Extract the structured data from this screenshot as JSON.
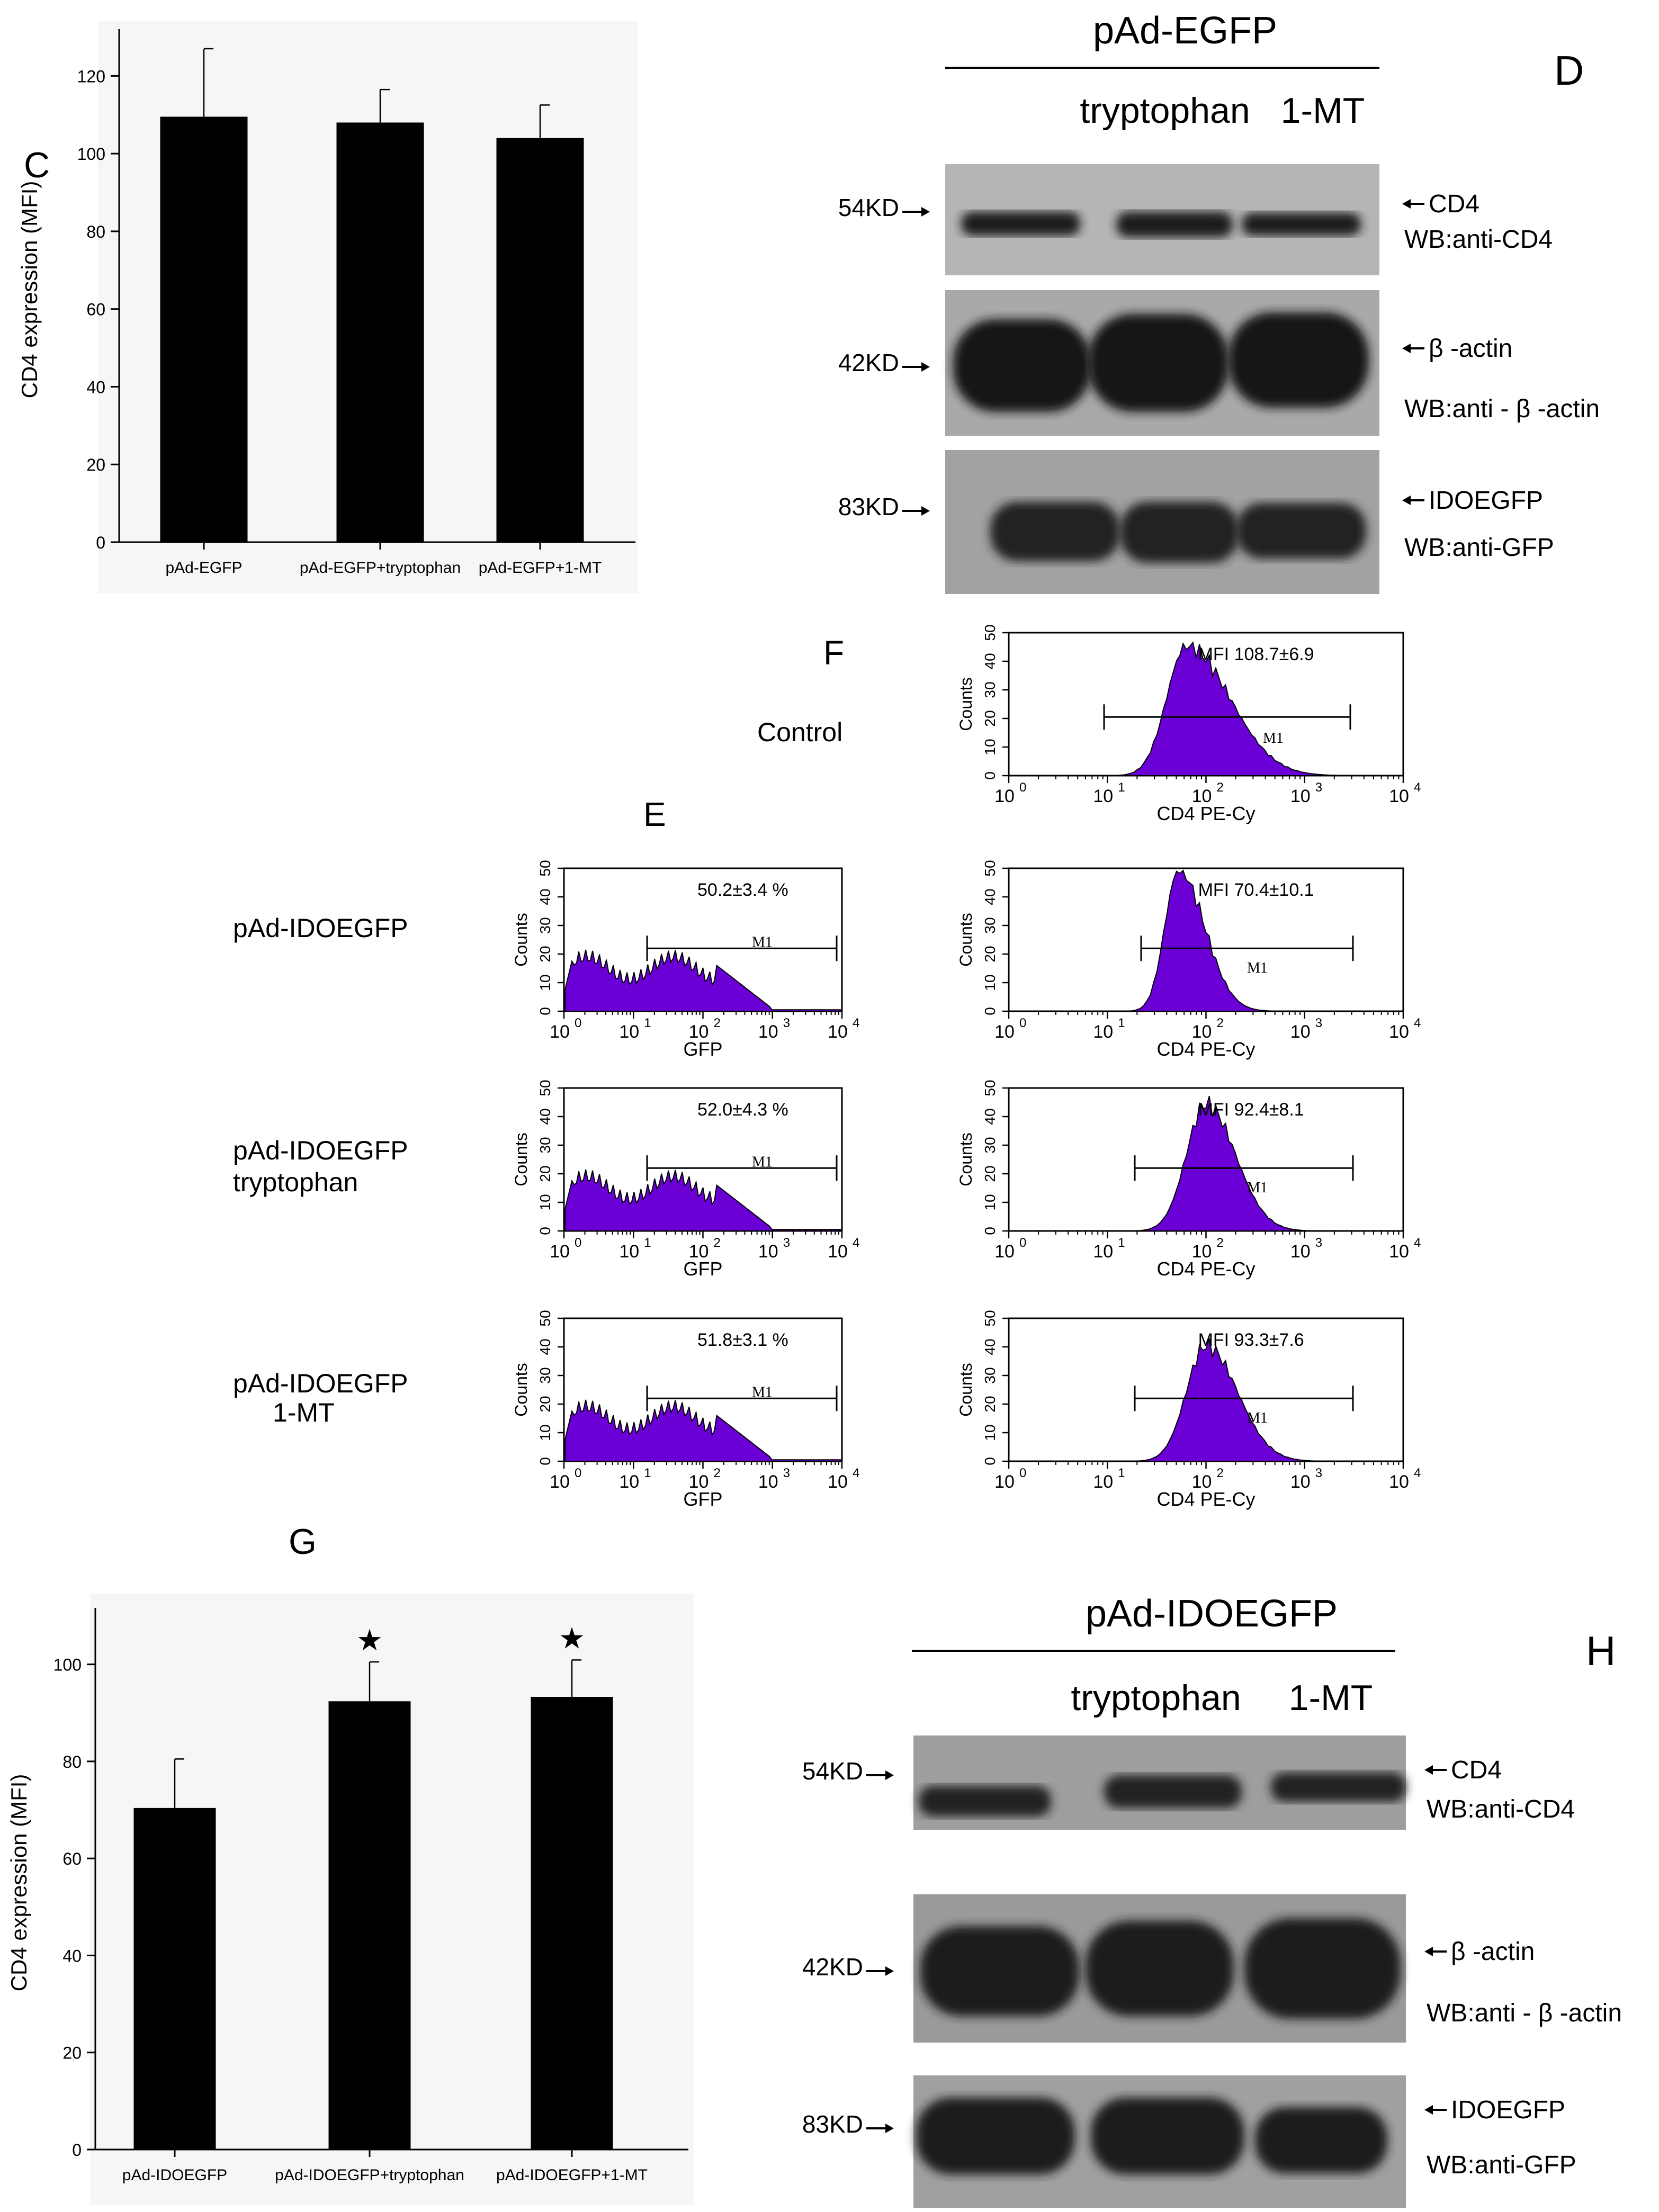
{
  "panels": {
    "C": {
      "letter": "C"
    },
    "D": {
      "letter": "D",
      "header": "pAd-EGFP",
      "lane_labels": [
        "tryptophan",
        "1-MT"
      ],
      "blots": [
        {
          "size": "54KD",
          "target": "CD4",
          "wb": "WB:anti-CD4",
          "band_color": "#1e1e1e",
          "bg": "#b5b5b5"
        },
        {
          "size": "42KD",
          "target": "β -actin",
          "wb": "WB:anti - β -actin",
          "band_color": "#141414",
          "bg": "#a9a9a9"
        },
        {
          "size": "83KD",
          "target": "IDOEGFP",
          "wb": "WB:anti-GFP",
          "band_color": "#232323",
          "bg": "#a2a2a2"
        }
      ]
    },
    "E": {
      "letter": "E",
      "rows": [
        {
          "label_lines": [
            "pAd-IDOEGFP"
          ],
          "percent": "50.2±3.4 %",
          "mfi": "MFI 70.4±10.1"
        },
        {
          "label_lines": [
            "pAd-IDOEGFP",
            "tryptophan"
          ],
          "percent": "52.0±4.3 %",
          "mfi": "MFI 92.4±8.1"
        },
        {
          "label_lines": [
            "pAd-IDOEGFP",
            "1-MT"
          ],
          "percent": "51.8±3.1 %",
          "mfi": "MFI 93.3±7.6"
        }
      ]
    },
    "F": {
      "letter": "F",
      "control_label": "Control",
      "control_mfi": "MFI 108.7±6.9"
    },
    "G": {
      "letter": "G"
    },
    "H": {
      "letter": "H",
      "header": "pAd-IDOEGFP",
      "lane_labels": [
        "tryptophan",
        "1-MT"
      ],
      "blots": [
        {
          "size": "54KD",
          "target": "CD4",
          "wb": "WB:anti-CD4",
          "band_color": "#242424",
          "bg": "#9e9e9e"
        },
        {
          "size": "42KD",
          "target": "β -actin",
          "wb": "WB:anti - β -actin",
          "band_color": "#1c1c1c",
          "bg": "#9a9a9a"
        },
        {
          "size": "83KD",
          "target": "IDOEGFP",
          "wb": "WB:anti-GFP",
          "band_color": "#1a1a1a",
          "bg": "#a0a0a0"
        }
      ]
    }
  },
  "histogram": {
    "fill_color": "#6b00d6",
    "y_label": "Counts",
    "y_ticks": [
      "0",
      "10",
      "20",
      "30",
      "40",
      "50"
    ],
    "x_tick_exponents": [
      "0",
      "1",
      "2",
      "3",
      "4"
    ],
    "x_tick_base": "10",
    "gate_label": "M1",
    "gfp_xlabel": "GFP",
    "cd4_xlabel": "CD4 PE-Cy"
  },
  "chart_data": [
    {
      "type": "bar",
      "panel": "C",
      "categories": [
        "pAd-EGFP",
        "pAd-EGFP+tryptophan",
        "pAd-EGFP+1-MT"
      ],
      "values": [
        109.5,
        108,
        104
      ],
      "error": [
        17.5,
        8.5,
        8.5
      ],
      "ylabel": "CD4 expression (MFI)",
      "ylim": [
        0,
        130
      ],
      "yticks": [
        0,
        20,
        40,
        60,
        80,
        100,
        120
      ],
      "bar_color": "#000000"
    },
    {
      "type": "bar",
      "panel": "G",
      "categories": [
        "pAd-IDOEGFP",
        "pAd-IDOEGFP+tryptophan",
        "pAd-IDOEGFP+1-MT"
      ],
      "values": [
        70.4,
        92.4,
        93.3
      ],
      "error": [
        10.1,
        8.1,
        7.6
      ],
      "significance": [
        "",
        "★",
        "★"
      ],
      "ylabel": "CD4 expression (MFI)",
      "ylim": [
        0,
        110
      ],
      "yticks": [
        0,
        20,
        40,
        60,
        80,
        100
      ],
      "bar_color": "#000000"
    }
  ]
}
